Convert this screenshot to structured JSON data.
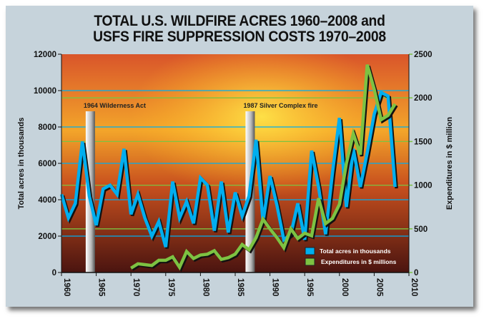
{
  "chart_data": {
    "type": "line",
    "title_lines": [
      "TOTAL U.S. WILDFIRE ACRES 1960–2008 and",
      "USFS FIRE SUPPRESSION COSTS 1970–2008"
    ],
    "ylabel": "Total acres in thousands",
    "ylabel_right": "Expenditures in $ million",
    "xlim": [
      1960,
      2010
    ],
    "ylim": [
      0,
      12000
    ],
    "ylim_right": [
      0,
      2500
    ],
    "xticks": [
      "1960",
      "1965",
      "1970",
      "1975",
      "1980",
      "1985",
      "1990",
      "1995",
      "2000",
      "2005",
      "2010"
    ],
    "yticks": [
      "0",
      "2000",
      "4000",
      "6000",
      "8000",
      "10000",
      "12000"
    ],
    "yticks_right": [
      "0",
      "500",
      "1000",
      "1500",
      "2000",
      "2500"
    ],
    "grid": true,
    "legend_position": "bottom-right",
    "colors": {
      "acres": "#00aeef",
      "expenditures": "#7dc242"
    },
    "annotations": [
      {
        "x": 1964,
        "label": "1964 Wilderness Act"
      },
      {
        "x": 1987,
        "label": "1987 Silver Complex fire"
      }
    ],
    "series": [
      {
        "name": "Total acres in thousands",
        "axis": "left",
        "x": [
          1960,
          1961,
          1962,
          1963,
          1964,
          1965,
          1966,
          1967,
          1968,
          1969,
          1970,
          1971,
          1972,
          1973,
          1974,
          1975,
          1976,
          1977,
          1978,
          1979,
          1980,
          1981,
          1982,
          1983,
          1984,
          1985,
          1986,
          1987,
          1988,
          1989,
          1990,
          1991,
          1992,
          1993,
          1994,
          1995,
          1996,
          1997,
          1998,
          1999,
          2000,
          2001,
          2002,
          2003,
          2004,
          2005,
          2006,
          2007,
          2008
        ],
        "values": [
          4300,
          3000,
          3800,
          7200,
          4200,
          2600,
          4600,
          4800,
          4300,
          6800,
          3200,
          4300,
          3000,
          2000,
          2800,
          1400,
          5000,
          3000,
          3900,
          2700,
          5200,
          4800,
          2300,
          5000,
          2200,
          4400,
          3100,
          4200,
          7300,
          2800,
          5300,
          3700,
          1800,
          2100,
          3800,
          1800,
          6700,
          4700,
          2100,
          5500,
          8500,
          3600,
          6800,
          4700,
          6600,
          8700,
          9900,
          9700,
          4700
        ]
      },
      {
        "name": "Expenditures in $ millions",
        "axis": "right",
        "x": [
          1970,
          1971,
          1972,
          1973,
          1974,
          1975,
          1976,
          1977,
          1978,
          1979,
          1980,
          1981,
          1982,
          1983,
          1984,
          1985,
          1986,
          1987,
          1988,
          1989,
          1990,
          1991,
          1992,
          1993,
          1994,
          1995,
          1996,
          1997,
          1998,
          1999,
          2000,
          2001,
          2002,
          2003,
          2004,
          2005,
          2006,
          2007,
          2008
        ],
        "values": [
          50,
          100,
          90,
          80,
          140,
          140,
          180,
          60,
          240,
          160,
          200,
          210,
          250,
          150,
          170,
          210,
          320,
          260,
          400,
          610,
          500,
          400,
          285,
          500,
          390,
          450,
          420,
          850,
          560,
          620,
          780,
          1250,
          1590,
          1350,
          2380,
          2100,
          1750,
          1800,
          1930
        ]
      }
    ]
  }
}
